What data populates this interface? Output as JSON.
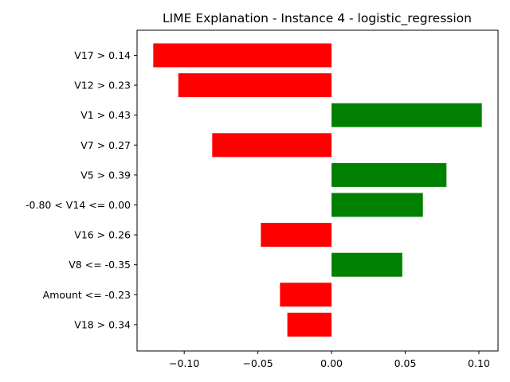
{
  "chart_data": {
    "type": "bar",
    "orientation": "horizontal",
    "title": "LIME Explanation - Instance 4 - logistic_regression",
    "xlabel": "",
    "ylabel": "",
    "xlim": [
      -0.132,
      0.113
    ],
    "x_ticks": [
      -0.1,
      -0.05,
      0.0,
      0.05,
      0.1
    ],
    "x_tick_labels": [
      "−0.10",
      "−0.05",
      "0.00",
      "0.05",
      "0.10"
    ],
    "grid": false,
    "legend": "none",
    "colors": {
      "positive": "#008000",
      "negative": "#ff0000"
    },
    "categories": [
      "V17 > 0.14",
      "V12 > 0.23",
      "V1 > 0.43",
      "V7 > 0.27",
      "V5 > 0.39",
      "-0.80 < V14 <= 0.00",
      "V16 > 0.26",
      "V8 <= -0.35",
      "Amount <= -0.23",
      "V18 > 0.34"
    ],
    "values": [
      -0.121,
      -0.104,
      0.102,
      -0.081,
      0.078,
      0.062,
      -0.048,
      0.048,
      -0.035,
      -0.03
    ]
  }
}
